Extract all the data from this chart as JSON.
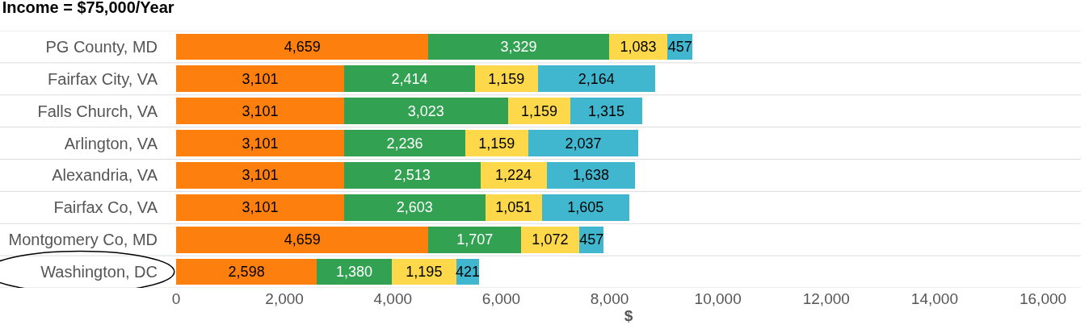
{
  "chart_data": {
    "type": "bar",
    "orientation": "horizontal",
    "stacked": true,
    "title": "Income = $75,000/Year",
    "xlabel": "$",
    "categories": [
      "PG County, MD",
      "Fairfax City, VA",
      "Falls Church, VA",
      "Arlington, VA",
      "Alexandria, VA",
      "Fairfax Co, VA",
      "Montgomery Co, MD",
      "Washington, DC"
    ],
    "series": [
      {
        "color": "#fd7f0e",
        "values": [
          4659,
          3101,
          3101,
          3101,
          3101,
          3101,
          4659,
          2598
        ],
        "value_labels": [
          "4,659",
          "3,101",
          "3,101",
          "3,101",
          "3,101",
          "3,101",
          "4,659",
          "2,598"
        ]
      },
      {
        "color": "#33a152",
        "values": [
          3329,
          2414,
          3023,
          2236,
          2513,
          2603,
          1707,
          1380
        ],
        "value_labels": [
          "3,329",
          "2,414",
          "3,023",
          "2,236",
          "2,513",
          "2,603",
          "1,707",
          "1,380"
        ]
      },
      {
        "color": "#fcd84a",
        "values": [
          1083,
          1159,
          1159,
          1159,
          1224,
          1051,
          1072,
          1195
        ],
        "value_labels": [
          "1,083",
          "1,159",
          "1,159",
          "1,159",
          "1,224",
          "1,051",
          "1,072",
          "1,195"
        ]
      },
      {
        "color": "#40b7cf",
        "values": [
          457,
          2164,
          1315,
          2037,
          1638,
          1605,
          457,
          421
        ],
        "value_labels": [
          "457",
          "2,164",
          "1,315",
          "2,037",
          "1,638",
          "1,605",
          "457",
          "421"
        ]
      }
    ],
    "xlim": [
      0,
      16700
    ],
    "xticks": [
      {
        "value": 0,
        "label": "0"
      },
      {
        "value": 2000,
        "label": "2,000"
      },
      {
        "value": 4000,
        "label": "4,000"
      },
      {
        "value": 6000,
        "label": "6,000"
      },
      {
        "value": 8000,
        "label": "8,000"
      },
      {
        "value": 10000,
        "label": "10,000"
      },
      {
        "value": 12000,
        "label": "12,000"
      },
      {
        "value": 14000,
        "label": "14,000"
      },
      {
        "value": 16000,
        "label": "16,000"
      }
    ],
    "grid": false
  }
}
